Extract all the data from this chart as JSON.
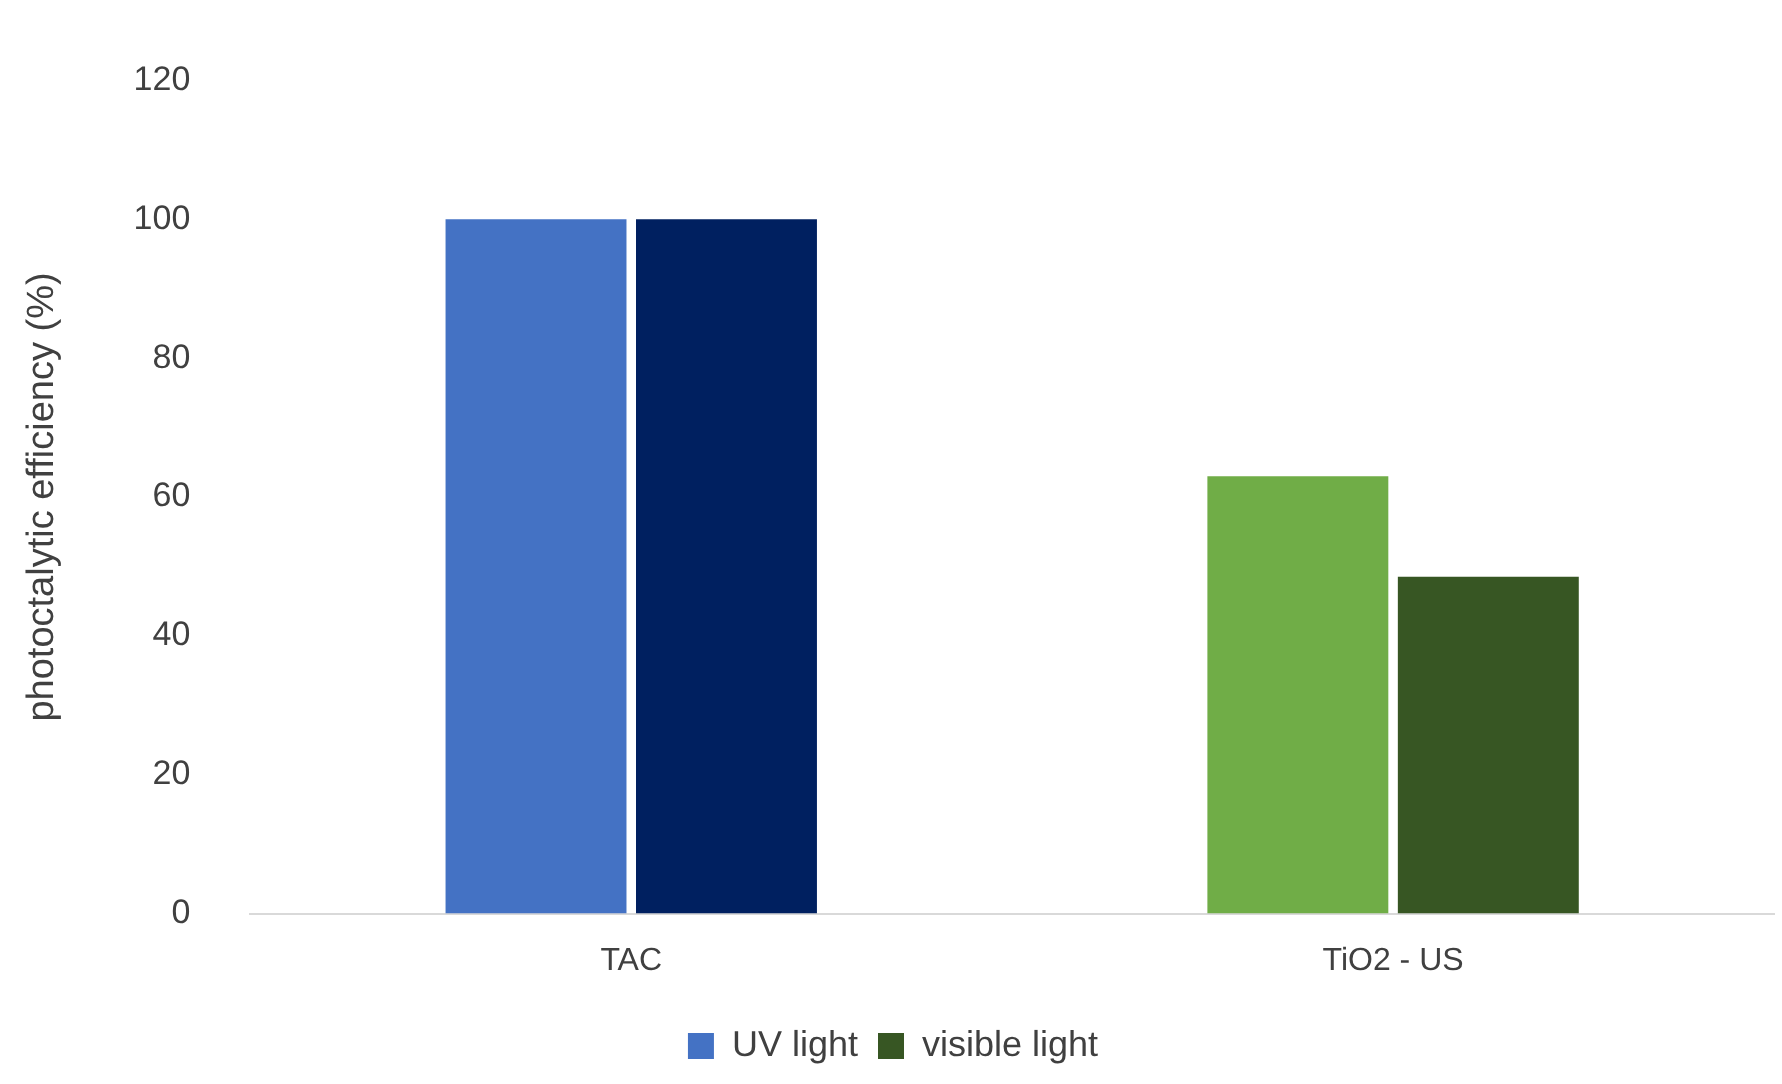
{
  "chart_data": {
    "type": "bar",
    "ylabel": "photoctalytic efficiency (%)",
    "categories": [
      "TAC",
      "TiO2 - US"
    ],
    "series": [
      {
        "name": "UV light",
        "color": "#4472c4",
        "colors": [
          "#4472c4",
          "#70ad47"
        ],
        "values": [
          100,
          63
        ]
      },
      {
        "name": "visible light",
        "color": "#375623",
        "colors": [
          "#002060",
          "#375623"
        ],
        "values": [
          100,
          48.5
        ]
      }
    ],
    "ylim": [
      0,
      120
    ],
    "yticks": [
      0,
      20,
      40,
      60,
      80,
      100,
      120
    ],
    "grid": false,
    "legend": "bottom"
  }
}
